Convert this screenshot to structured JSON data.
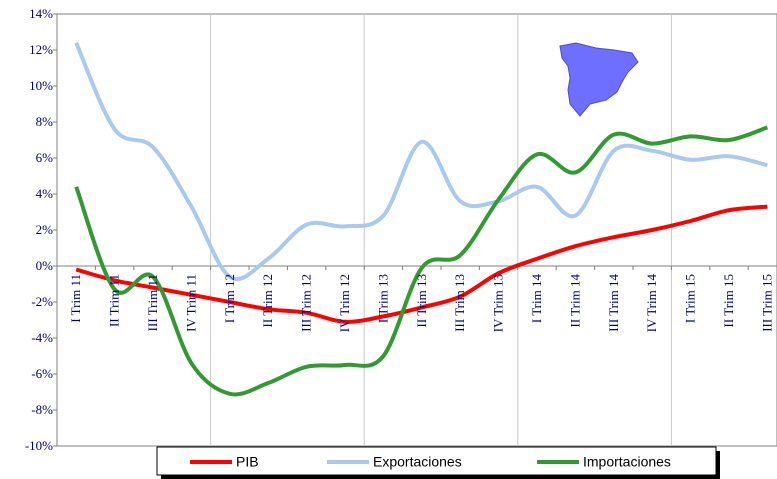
{
  "chart_data": {
    "type": "line",
    "categories": [
      "I Trim 11",
      "II Trim 11",
      "III Trim 11",
      "IV Trim 11",
      "I Trim 12",
      "II Trim 12",
      "III Trim 12",
      "IV Trim 12",
      "I Trim 13",
      "II Trim 13",
      "III Trim 13",
      "IV Trim 13",
      "I Trim 14",
      "II Trim 14",
      "III Trim 14",
      "IV Trim 14",
      "I Trim 15",
      "II Trim 15",
      "III Trim 15"
    ],
    "series": [
      {
        "name": "PIB",
        "color": "#ff0000",
        "values": [
          -0.2,
          -0.8,
          -1.2,
          -1.6,
          -2.0,
          -2.4,
          -2.6,
          -3.1,
          -2.8,
          -2.3,
          -1.7,
          -0.4,
          0.4,
          1.1,
          1.6,
          2.0,
          2.5,
          3.1,
          3.3
        ]
      },
      {
        "name": "Exportaciones",
        "color": "#a9c9ee",
        "values": [
          12.4,
          7.6,
          6.6,
          3.3,
          -0.6,
          0.4,
          2.3,
          2.2,
          2.8,
          6.9,
          3.6,
          3.6,
          4.4,
          2.8,
          6.4,
          6.4,
          5.9,
          6.1,
          5.6
        ]
      },
      {
        "name": "Importaciones",
        "color": "#339933",
        "values": [
          4.4,
          -1.3,
          -0.6,
          -5.4,
          -7.1,
          -6.5,
          -5.6,
          -5.5,
          -5.0,
          -0.1,
          0.6,
          3.7,
          6.2,
          5.2,
          7.3,
          6.8,
          7.2,
          7.0,
          7.7
        ]
      }
    ],
    "ylim": [
      -10,
      14
    ],
    "yticks": [
      {
        "value": -10,
        "label": "-10%"
      },
      {
        "value": -8,
        "label": "-8%"
      },
      {
        "value": -6,
        "label": "-6%"
      },
      {
        "value": -4,
        "label": "-4%"
      },
      {
        "value": -2,
        "label": "-2%"
      },
      {
        "value": 0,
        "label": "0%"
      },
      {
        "value": 2,
        "label": "2%"
      },
      {
        "value": 4,
        "label": "4%"
      },
      {
        "value": 6,
        "label": "6%"
      },
      {
        "value": 8,
        "label": "8%"
      },
      {
        "value": 10,
        "label": "10%"
      },
      {
        "value": 12,
        "label": "12%"
      },
      {
        "value": 14,
        "label": "14%"
      }
    ],
    "legend": "bottom"
  }
}
